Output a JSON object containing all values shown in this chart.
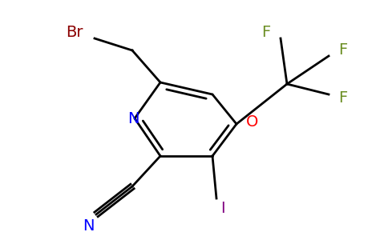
{
  "background_color": "#ffffff",
  "figsize": [
    4.84,
    3.0
  ],
  "dpi": 100,
  "ring_color": "#000000",
  "ring_lw": 2.0,
  "sub_lw": 2.0,
  "atom_colors": {
    "N": "#0000ff",
    "O": "#ff0000",
    "I": "#800080",
    "Br": "#8b0000",
    "F": "#6b8e23",
    "C": "#000000"
  }
}
